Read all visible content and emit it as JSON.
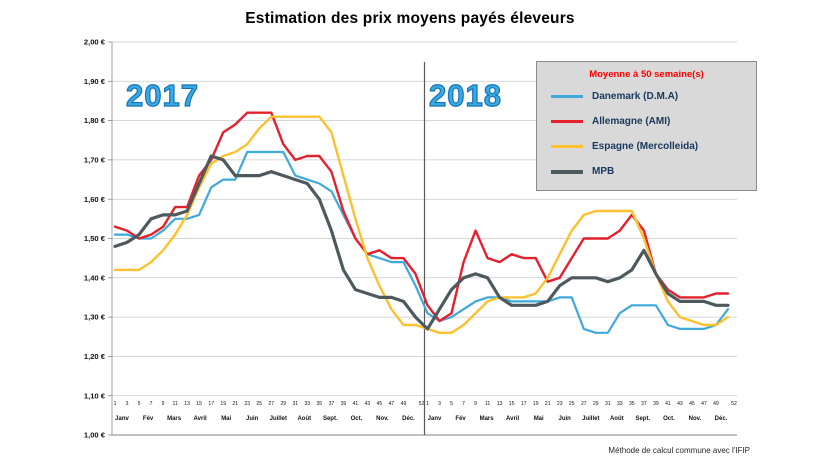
{
  "title": "Estimation des prix moyens payés éleveurs",
  "footer": "Méthode de calcul commune avec l'IFIP",
  "year_labels": [
    "2017",
    "2018"
  ],
  "legend": {
    "title": "Moyenne à 50 semaine(s)",
    "position": "top-right"
  },
  "styles": {
    "year_fill": "#3BAADF",
    "year_stroke": "#1274BC",
    "legend_bg": "#D9D9D9",
    "legend_title_color": "#FF0000",
    "legend_label_color": "#17375D",
    "grid_color": "#C9C9C9",
    "axis_color": "#808080",
    "divider_color": "#595959"
  },
  "chart_data": {
    "type": "line",
    "title": "Estimation des prix moyens payés éleveurs",
    "xlabel": "",
    "ylabel": "",
    "ylim": [
      1.0,
      2.0
    ],
    "grid": true,
    "legend_position": "top-right",
    "ytick_labels": [
      "2,00 €",
      "1,90 €",
      "1,80 €",
      "1,70 €",
      "1,60 €",
      "1,50 €",
      "1,40 €",
      "1,30 €",
      "1,20 €",
      "1,10 €",
      "1,00 €"
    ],
    "week_tick_labels": [
      "1",
      "3",
      "5",
      "7",
      "9",
      "11",
      "13",
      "15",
      "17",
      "19",
      "21",
      "23",
      "25",
      "27",
      "29",
      "31",
      "33",
      "35",
      "37",
      "39",
      "41",
      "43",
      "45",
      "47",
      "49",
      "52"
    ],
    "month_labels": [
      "Janv",
      "Fév",
      "Mars",
      "Avril",
      "Mai",
      "Juin",
      "Juillet",
      "Août",
      "Sept.",
      "Oct.",
      "Nov.",
      "Déc."
    ],
    "x_unit": "semaine (2017 = semaines 1-52, 2018 = semaines 53-104)",
    "x_weeks": [
      1,
      3,
      5,
      7,
      9,
      11,
      13,
      15,
      17,
      19,
      21,
      23,
      25,
      27,
      29,
      31,
      33,
      35,
      37,
      39,
      41,
      43,
      45,
      47,
      49,
      51,
      53,
      55,
      57,
      59,
      61,
      63,
      65,
      67,
      69,
      71,
      73,
      75,
      77,
      79,
      81,
      83,
      85,
      87,
      89,
      91,
      93,
      95,
      97,
      99,
      101,
      103
    ],
    "series": [
      {
        "id": "danemark",
        "name": "Danemark (D.M.A)",
        "color": "#3FA9DC",
        "stroke_width": 2.2,
        "values": [
          1.51,
          1.51,
          1.5,
          1.5,
          1.52,
          1.55,
          1.55,
          1.56,
          1.63,
          1.65,
          1.65,
          1.72,
          1.72,
          1.72,
          1.72,
          1.66,
          1.65,
          1.64,
          1.62,
          1.56,
          1.5,
          1.46,
          1.45,
          1.44,
          1.44,
          1.38,
          1.31,
          1.29,
          1.3,
          1.32,
          1.34,
          1.35,
          1.35,
          1.34,
          1.34,
          1.34,
          1.34,
          1.35,
          1.35,
          1.27,
          1.26,
          1.26,
          1.31,
          1.33,
          1.33,
          1.33,
          1.28,
          1.27,
          1.27,
          1.27,
          1.28,
          1.32
        ]
      },
      {
        "id": "allemagne",
        "name": "Allemagne (AMI)",
        "color": "#E5202E",
        "stroke_width": 2.4,
        "values": [
          1.53,
          1.52,
          1.5,
          1.51,
          1.53,
          1.58,
          1.58,
          1.66,
          1.7,
          1.77,
          1.79,
          1.82,
          1.82,
          1.82,
          1.74,
          1.7,
          1.71,
          1.71,
          1.67,
          1.57,
          1.5,
          1.46,
          1.47,
          1.45,
          1.45,
          1.41,
          1.33,
          1.29,
          1.31,
          1.44,
          1.52,
          1.45,
          1.44,
          1.46,
          1.45,
          1.45,
          1.39,
          1.4,
          1.45,
          1.5,
          1.5,
          1.5,
          1.52,
          1.56,
          1.52,
          1.41,
          1.37,
          1.35,
          1.35,
          1.35,
          1.36,
          1.36
        ]
      },
      {
        "id": "espagne",
        "name": "Espagne (Mercolleida)",
        "color": "#FDC02F",
        "stroke_width": 2.4,
        "values": [
          1.42,
          1.42,
          1.42,
          1.44,
          1.47,
          1.51,
          1.56,
          1.63,
          1.69,
          1.71,
          1.72,
          1.74,
          1.78,
          1.81,
          1.81,
          1.81,
          1.81,
          1.81,
          1.77,
          1.66,
          1.55,
          1.45,
          1.38,
          1.32,
          1.28,
          1.28,
          1.27,
          1.26,
          1.26,
          1.28,
          1.31,
          1.34,
          1.35,
          1.35,
          1.35,
          1.36,
          1.4,
          1.46,
          1.52,
          1.56,
          1.57,
          1.57,
          1.57,
          1.57,
          1.5,
          1.41,
          1.34,
          1.3,
          1.29,
          1.28,
          1.28,
          1.3
        ]
      },
      {
        "id": "mpb",
        "name": "MPB",
        "color": "#4E595E",
        "stroke_width": 3.2,
        "values": [
          1.48,
          1.49,
          1.51,
          1.55,
          1.56,
          1.56,
          1.57,
          1.64,
          1.71,
          1.7,
          1.66,
          1.66,
          1.66,
          1.67,
          1.66,
          1.65,
          1.64,
          1.6,
          1.52,
          1.42,
          1.37,
          1.36,
          1.35,
          1.35,
          1.34,
          1.3,
          1.27,
          1.32,
          1.37,
          1.4,
          1.41,
          1.4,
          1.35,
          1.33,
          1.33,
          1.33,
          1.34,
          1.38,
          1.4,
          1.4,
          1.4,
          1.39,
          1.4,
          1.42,
          1.47,
          1.41,
          1.36,
          1.34,
          1.34,
          1.34,
          1.33,
          1.33
        ]
      }
    ]
  }
}
